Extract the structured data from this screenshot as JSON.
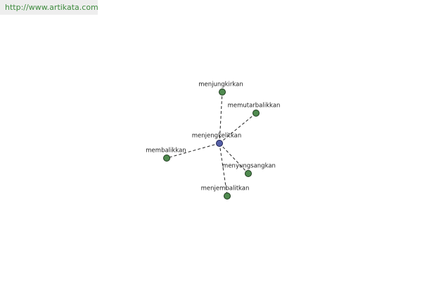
{
  "header": {
    "url": "http://www.artikata.com"
  },
  "center": {
    "label": "menjengkelitkan"
  },
  "nodes": [
    {
      "label": "menjungkirkan"
    },
    {
      "label": "memutarbalikkan"
    },
    {
      "label": "membalikkan"
    },
    {
      "label": "menyungsangkan"
    },
    {
      "label": "menjembalitkan"
    }
  ]
}
